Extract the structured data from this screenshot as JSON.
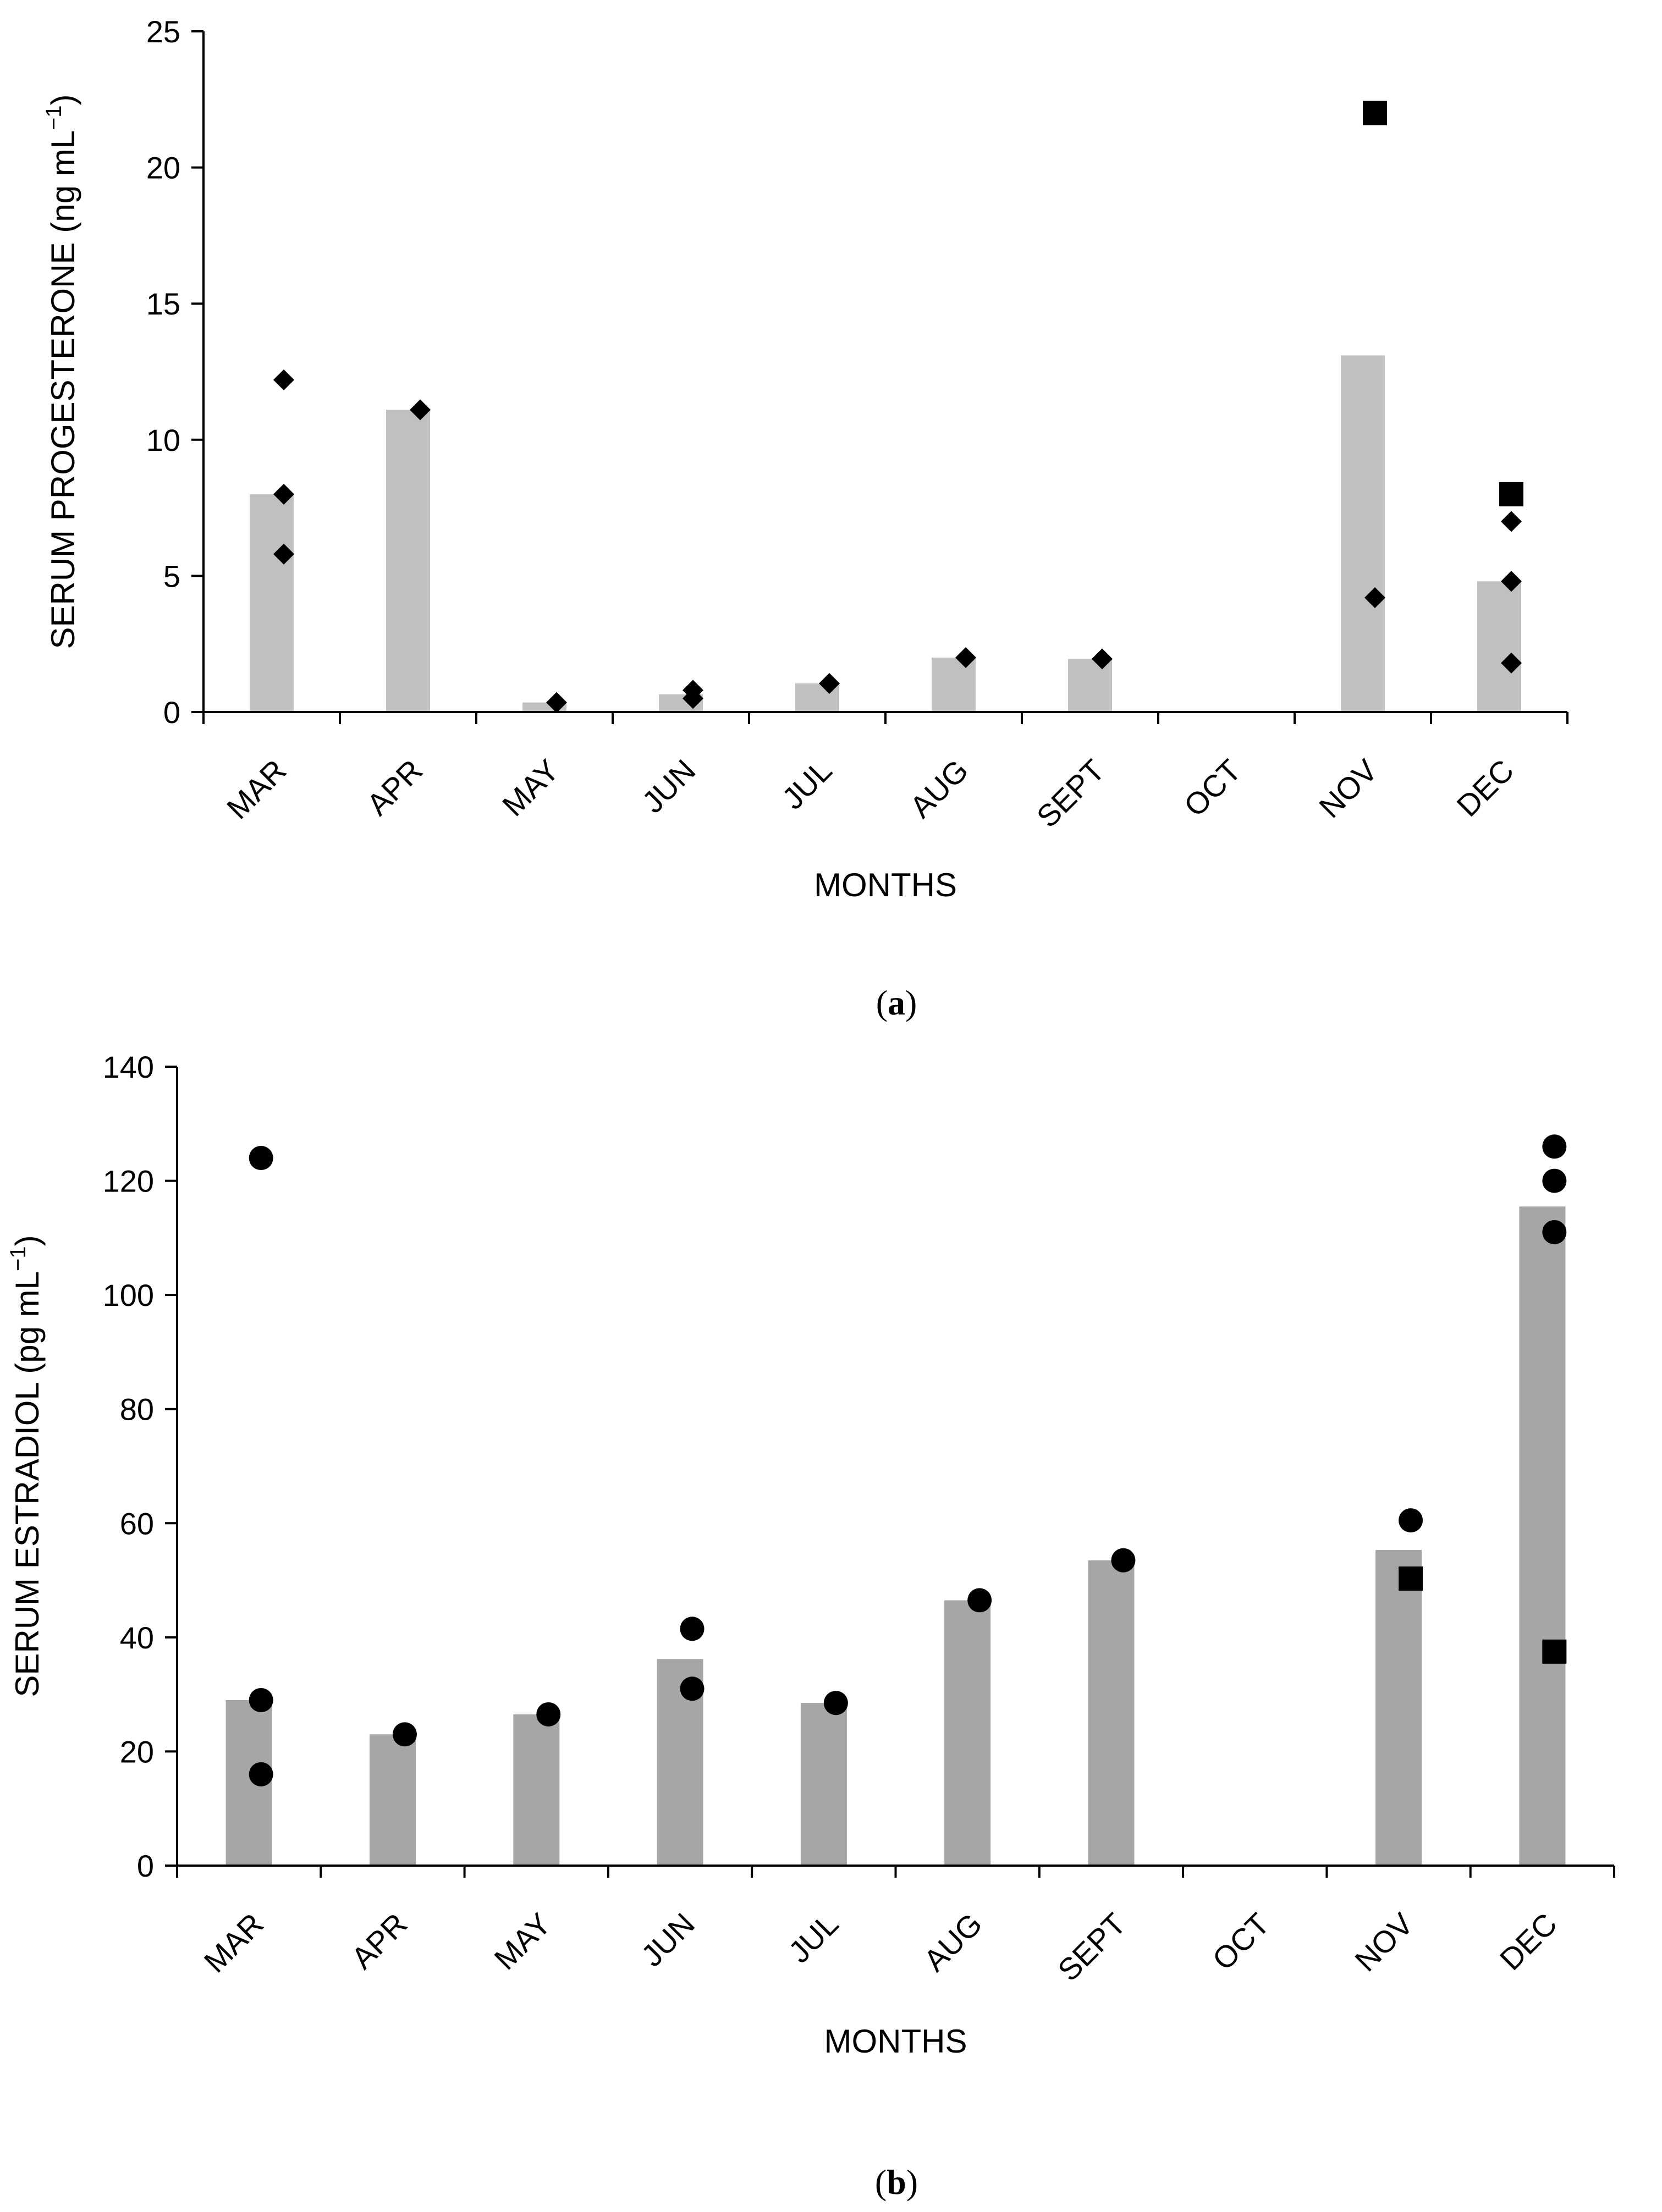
{
  "chart_data": [
    {
      "type": "bar",
      "panel_label": "a",
      "title": "",
      "xlabel": "MONTHS",
      "ylabel_main": "SERUM PROGESTERONE (ng mL",
      "ylabel_sup": "−1",
      "ylabel_end": ")",
      "ylim": [
        0,
        25
      ],
      "yticks": [
        0,
        5,
        10,
        15,
        20,
        25
      ],
      "categories": [
        "MAR",
        "APR",
        "MAY",
        "JUN",
        "JUL",
        "AUG",
        "SEPT",
        "OCT",
        "NOV",
        "DEC"
      ],
      "bar_color": "#c0c0c0",
      "bars": [
        8.0,
        11.1,
        0.35,
        0.65,
        1.05,
        2.0,
        1.95,
        null,
        13.1,
        4.8
      ],
      "points": [
        {
          "category": "MAR",
          "value": 12.2,
          "marker": "diamond"
        },
        {
          "category": "MAR",
          "value": 8.0,
          "marker": "diamond"
        },
        {
          "category": "MAR",
          "value": 5.8,
          "marker": "diamond"
        },
        {
          "category": "APR",
          "value": 11.1,
          "marker": "diamond"
        },
        {
          "category": "MAY",
          "value": 0.35,
          "marker": "diamond"
        },
        {
          "category": "JUN",
          "value": 0.8,
          "marker": "diamond"
        },
        {
          "category": "JUN",
          "value": 0.5,
          "marker": "diamond"
        },
        {
          "category": "JUL",
          "value": 1.05,
          "marker": "diamond"
        },
        {
          "category": "AUG",
          "value": 2.0,
          "marker": "diamond"
        },
        {
          "category": "SEPT",
          "value": 1.95,
          "marker": "diamond"
        },
        {
          "category": "NOV",
          "value": 22.0,
          "marker": "square"
        },
        {
          "category": "NOV",
          "value": 4.2,
          "marker": "diamond"
        },
        {
          "category": "DEC",
          "value": 8.0,
          "marker": "square"
        },
        {
          "category": "DEC",
          "value": 7.0,
          "marker": "diamond"
        },
        {
          "category": "DEC",
          "value": 4.8,
          "marker": "diamond"
        },
        {
          "category": "DEC",
          "value": 1.8,
          "marker": "diamond"
        }
      ]
    },
    {
      "type": "bar",
      "panel_label": "b",
      "title": "",
      "xlabel": "MONTHS",
      "ylabel_main": "SERUM ESTRADIOL (pg mL",
      "ylabel_sup": "−1",
      "ylabel_end": ")",
      "ylim": [
        0,
        140
      ],
      "yticks": [
        0,
        20,
        40,
        60,
        80,
        100,
        120,
        140
      ],
      "categories": [
        "MAR",
        "APR",
        "MAY",
        "JUN",
        "JUL",
        "AUG",
        "SEPT",
        "OCT",
        "NOV",
        "DEC"
      ],
      "bar_color": "#a6a6a6",
      "bars": [
        29.0,
        23.0,
        26.5,
        36.2,
        28.5,
        46.5,
        53.5,
        null,
        55.3,
        115.5
      ],
      "points": [
        {
          "category": "MAR",
          "value": 124.0,
          "marker": "circle"
        },
        {
          "category": "MAR",
          "value": 29.0,
          "marker": "circle"
        },
        {
          "category": "MAR",
          "value": 16.0,
          "marker": "circle"
        },
        {
          "category": "APR",
          "value": 23.0,
          "marker": "circle"
        },
        {
          "category": "MAY",
          "value": 26.5,
          "marker": "circle"
        },
        {
          "category": "JUN",
          "value": 41.5,
          "marker": "circle"
        },
        {
          "category": "JUN",
          "value": 31.0,
          "marker": "circle"
        },
        {
          "category": "JUL",
          "value": 28.5,
          "marker": "circle"
        },
        {
          "category": "AUG",
          "value": 46.5,
          "marker": "circle"
        },
        {
          "category": "SEPT",
          "value": 53.5,
          "marker": "circle"
        },
        {
          "category": "NOV",
          "value": 60.5,
          "marker": "circle"
        },
        {
          "category": "NOV",
          "value": 50.3,
          "marker": "square"
        },
        {
          "category": "DEC",
          "value": 126.0,
          "marker": "circle"
        },
        {
          "category": "DEC",
          "value": 120.0,
          "marker": "circle"
        },
        {
          "category": "DEC",
          "value": 111.0,
          "marker": "circle"
        },
        {
          "category": "DEC",
          "value": 37.5,
          "marker": "square"
        }
      ]
    }
  ]
}
